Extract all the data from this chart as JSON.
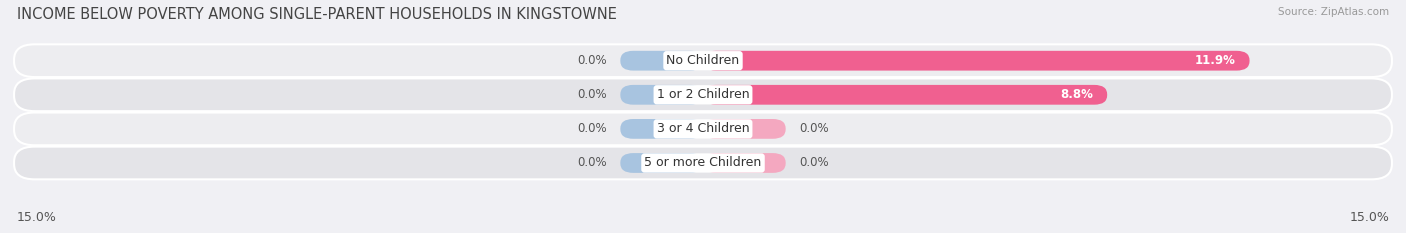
{
  "title": "INCOME BELOW POVERTY AMONG SINGLE-PARENT HOUSEHOLDS IN KINGSTOWNE",
  "source": "Source: ZipAtlas.com",
  "categories": [
    "No Children",
    "1 or 2 Children",
    "3 or 4 Children",
    "5 or more Children"
  ],
  "single_father": [
    0.0,
    0.0,
    0.0,
    0.0
  ],
  "single_mother": [
    11.9,
    8.8,
    0.0,
    0.0
  ],
  "max_val": 15.0,
  "x_left_label": "15.0%",
  "x_right_label": "15.0%",
  "father_color": "#a8c4e0",
  "mother_color_strong": "#f06090",
  "mother_color_weak": "#f4a8c0",
  "row_bg": "#e8e8ec",
  "bar_height": 0.58,
  "title_fontsize": 10.5,
  "label_fontsize": 8.5,
  "cat_fontsize": 9,
  "axis_label_fontsize": 9,
  "legend_fontsize": 9
}
